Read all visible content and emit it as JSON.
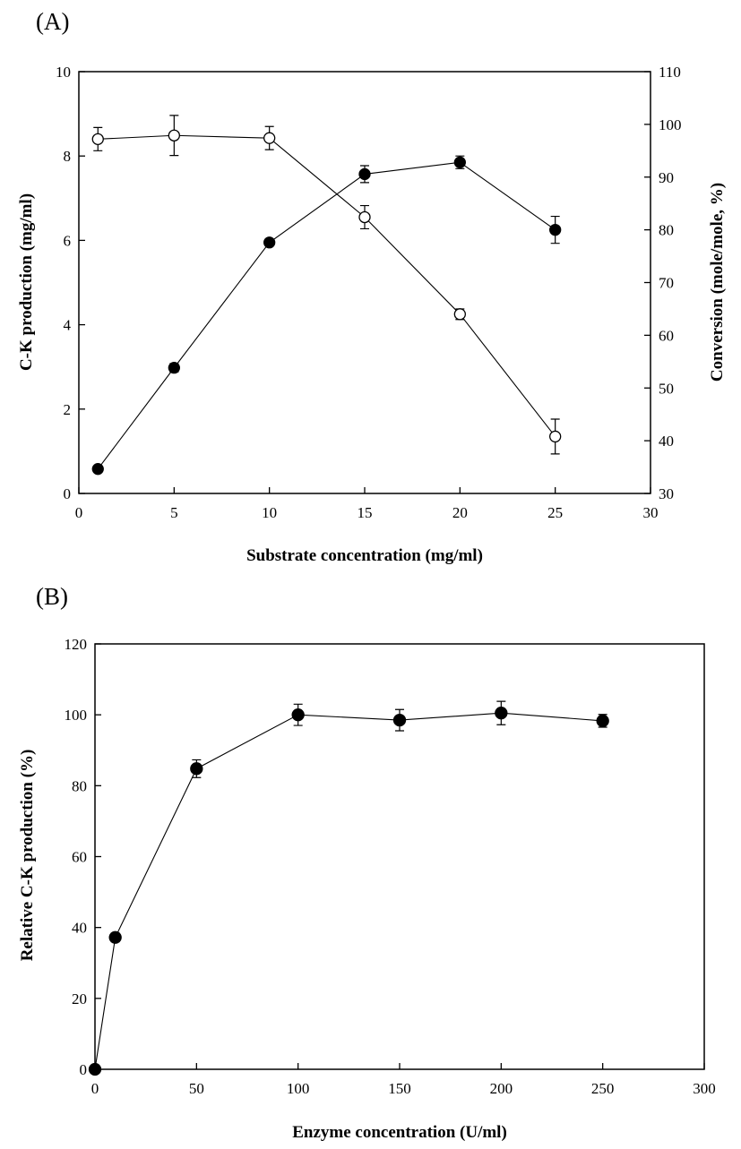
{
  "chart_data": [
    {
      "type": "line",
      "panel_label": "(A)",
      "xlabel": "Substrate  concentration (mg/ml)",
      "ylabel": "C-K production (mg/ml)",
      "y2label": "Conversion (mole/mole, %)",
      "xlim": [
        0,
        30
      ],
      "ylim": [
        0,
        10
      ],
      "y2lim": [
        30,
        110
      ],
      "xticks": [
        0,
        5,
        10,
        15,
        20,
        25,
        30
      ],
      "yticks": [
        0,
        2,
        4,
        6,
        8,
        10
      ],
      "y2ticks": [
        30,
        40,
        50,
        60,
        70,
        80,
        90,
        100,
        110
      ],
      "grid": false,
      "series": [
        {
          "marker": "filled-circle",
          "axis": "left",
          "x": [
            1,
            5,
            10,
            15,
            20,
            25
          ],
          "y": [
            0.58,
            2.98,
            5.95,
            7.57,
            7.85,
            6.25
          ],
          "err": [
            0.06,
            0.1,
            0.06,
            0.2,
            0.15,
            0.32
          ]
        },
        {
          "marker": "open-circle",
          "axis": "right",
          "x": [
            1,
            5,
            10,
            15,
            20,
            25
          ],
          "y": [
            97.2,
            97.9,
            97.4,
            82.4,
            64.0,
            40.8
          ],
          "err": [
            2.2,
            3.8,
            2.2,
            2.2,
            1.0,
            3.3
          ]
        }
      ]
    },
    {
      "type": "line",
      "panel_label": "(B)",
      "xlabel": "Enzyme concentration (U/ml)",
      "ylabel": "Relative C-K production (%)",
      "xlim": [
        0,
        300
      ],
      "ylim": [
        0,
        120
      ],
      "xticks": [
        0,
        50,
        100,
        150,
        200,
        250,
        300
      ],
      "yticks": [
        0,
        20,
        40,
        60,
        80,
        100,
        120
      ],
      "grid": false,
      "series": [
        {
          "marker": "filled-circle",
          "axis": "left",
          "x": [
            0,
            10,
            50,
            100,
            150,
            200,
            250
          ],
          "y": [
            0,
            37.2,
            84.8,
            100.0,
            98.5,
            100.5,
            98.3
          ],
          "err": [
            0,
            1.2,
            2.5,
            3.0,
            3.0,
            3.3,
            1.8
          ]
        }
      ]
    }
  ]
}
